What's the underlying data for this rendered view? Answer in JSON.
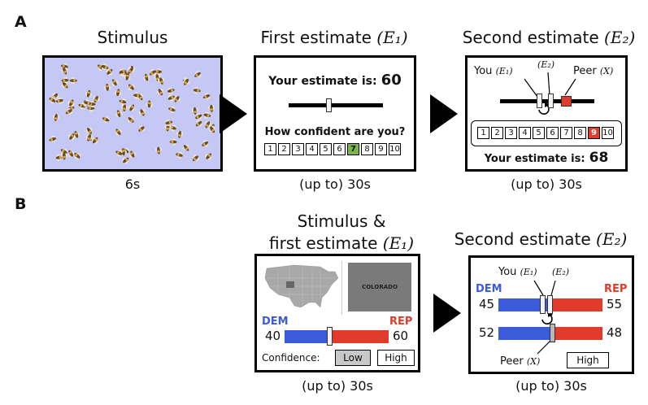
{
  "panel_a": {
    "letter": "A",
    "stim": {
      "title": "Stimulus",
      "duration": "6s",
      "bg_color": "#c5c8f5"
    },
    "first": {
      "title_text": "First estimate",
      "title_var": "(E₁)",
      "estimate_label": "Your estimate is:",
      "estimate_value": "60",
      "confidence_q": "How confident are you?",
      "boxes": [
        "1",
        "2",
        "3",
        "4",
        "5",
        "6",
        "7",
        "8",
        "9",
        "10"
      ],
      "selected": "7",
      "duration": "(up to) 30s"
    },
    "second": {
      "title_text": "Second estimate",
      "title_var": "(E₂)",
      "you_label": "You",
      "you_var": "(E₁)",
      "e2_var": "(E₂)",
      "peer_label": "Peer",
      "peer_var": "(X)",
      "boxes": [
        "1",
        "2",
        "3",
        "4",
        "5",
        "6",
        "7",
        "8",
        "9",
        "10"
      ],
      "selected": "9",
      "estimate_label": "Your estimate is:",
      "estimate_value": "68",
      "duration": "(up to) 30s"
    }
  },
  "panel_b": {
    "letter": "B",
    "first": {
      "title_line1": "Stimulus &",
      "title_line2": "first estimate",
      "title_var": "(E₁)",
      "state_label": "COLORADO",
      "dem": "DEM",
      "rep": "REP",
      "left_value": "40",
      "right_value": "60",
      "confidence_label": "Confidence:",
      "low": "Low",
      "high": "High",
      "duration": "(up to) 30s",
      "dem_color": "#3b5bdb",
      "rep_color": "#e03b2b"
    },
    "second": {
      "title_text": "Second estimate",
      "title_var": "(E₂)",
      "you_label": "You",
      "you_var": "(E₁)",
      "e2_var": "(E₂)",
      "dem": "DEM",
      "rep": "REP",
      "top_left": "45",
      "top_right": "55",
      "bottom_left": "52",
      "bottom_right": "48",
      "peer_label": "Peer",
      "peer_var": "(X)",
      "high": "High",
      "duration": "(up to) 30s"
    }
  }
}
